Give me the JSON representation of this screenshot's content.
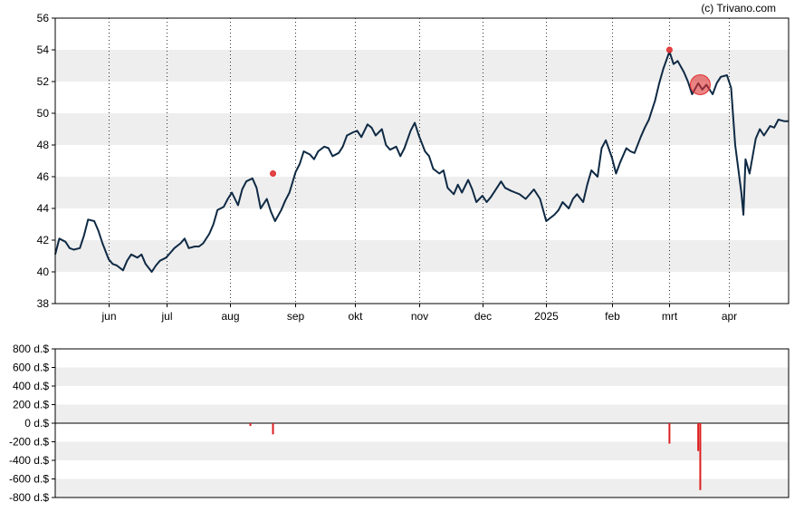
{
  "credit": "(c) Trivano.com",
  "colors": {
    "price_line": "#0f2a44",
    "band": "#eeeeee",
    "marker": "#e03030",
    "volume_bar": "#dd1f1f",
    "grid": "#333333",
    "frame": "#000000"
  },
  "chart_data": [
    {
      "type": "line",
      "title": "",
      "xlabel": "",
      "ylabel": "",
      "ylim": [
        38,
        56
      ],
      "yticks": [
        38,
        40,
        42,
        44,
        46,
        48,
        50,
        52,
        54,
        56
      ],
      "ytick_labels": [
        "38",
        "40",
        "42",
        "44",
        "46",
        "48",
        "50",
        "52",
        "54",
        "56"
      ],
      "xlim": [
        "2024-05-08",
        "2025-04-30"
      ],
      "xticks": [
        {
          "date": "2024-06-03",
          "label": "jun"
        },
        {
          "date": "2024-07-01",
          "label": "jul"
        },
        {
          "date": "2024-08-01",
          "label": "aug"
        },
        {
          "date": "2024-09-02",
          "label": "sep"
        },
        {
          "date": "2024-10-01",
          "label": "okt"
        },
        {
          "date": "2024-11-01",
          "label": "nov"
        },
        {
          "date": "2024-12-02",
          "label": "dec"
        },
        {
          "date": "2025-01-02",
          "label": "2025"
        },
        {
          "date": "2025-02-03",
          "label": "feb"
        },
        {
          "date": "2025-03-03",
          "label": "mrt"
        },
        {
          "date": "2025-04-01",
          "label": "apr"
        }
      ],
      "grid": true,
      "alternating_bands": true,
      "series": [
        {
          "points": [
            [
              "2024-05-08",
              41.1
            ],
            [
              "2024-05-10",
              42.1
            ],
            [
              "2024-05-13",
              41.9
            ],
            [
              "2024-05-15",
              41.5
            ],
            [
              "2024-05-17",
              41.4
            ],
            [
              "2024-05-20",
              41.5
            ],
            [
              "2024-05-22",
              42.3
            ],
            [
              "2024-05-24",
              43.3
            ],
            [
              "2024-05-27",
              43.2
            ],
            [
              "2024-05-29",
              42.6
            ],
            [
              "2024-05-31",
              41.8
            ],
            [
              "2024-06-03",
              40.8
            ],
            [
              "2024-06-05",
              40.5
            ],
            [
              "2024-06-07",
              40.4
            ],
            [
              "2024-06-10",
              40.1
            ],
            [
              "2024-06-12",
              40.7
            ],
            [
              "2024-06-14",
              41.1
            ],
            [
              "2024-06-17",
              40.9
            ],
            [
              "2024-06-19",
              41.1
            ],
            [
              "2024-06-21",
              40.5
            ],
            [
              "2024-06-24",
              40.0
            ],
            [
              "2024-06-26",
              40.4
            ],
            [
              "2024-06-28",
              40.7
            ],
            [
              "2024-07-01",
              40.9
            ],
            [
              "2024-07-03",
              41.2
            ],
            [
              "2024-07-05",
              41.5
            ],
            [
              "2024-07-08",
              41.8
            ],
            [
              "2024-07-10",
              42.1
            ],
            [
              "2024-07-12",
              41.5
            ],
            [
              "2024-07-15",
              41.6
            ],
            [
              "2024-07-17",
              41.6
            ],
            [
              "2024-07-19",
              41.8
            ],
            [
              "2024-07-22",
              42.4
            ],
            [
              "2024-07-24",
              43.0
            ],
            [
              "2024-07-26",
              43.9
            ],
            [
              "2024-07-29",
              44.1
            ],
            [
              "2024-07-31",
              44.6
            ],
            [
              "2024-08-02",
              45.0
            ],
            [
              "2024-08-05",
              44.2
            ],
            [
              "2024-08-07",
              45.2
            ],
            [
              "2024-08-09",
              45.7
            ],
            [
              "2024-08-12",
              45.9
            ],
            [
              "2024-08-14",
              45.3
            ],
            [
              "2024-08-16",
              44.0
            ],
            [
              "2024-08-19",
              44.6
            ],
            [
              "2024-08-21",
              43.8
            ],
            [
              "2024-08-23",
              43.2
            ],
            [
              "2024-08-26",
              43.9
            ],
            [
              "2024-08-28",
              44.5
            ],
            [
              "2024-08-30",
              45.0
            ],
            [
              "2024-09-02",
              46.3
            ],
            [
              "2024-09-04",
              46.8
            ],
            [
              "2024-09-06",
              47.6
            ],
            [
              "2024-09-09",
              47.4
            ],
            [
              "2024-09-11",
              47.1
            ],
            [
              "2024-09-13",
              47.6
            ],
            [
              "2024-09-16",
              47.9
            ],
            [
              "2024-09-18",
              47.8
            ],
            [
              "2024-09-20",
              47.3
            ],
            [
              "2024-09-23",
              47.5
            ],
            [
              "2024-09-25",
              47.9
            ],
            [
              "2024-09-27",
              48.6
            ],
            [
              "2024-09-30",
              48.8
            ],
            [
              "2024-10-02",
              48.9
            ],
            [
              "2024-10-04",
              48.5
            ],
            [
              "2024-10-07",
              49.3
            ],
            [
              "2024-10-09",
              49.1
            ],
            [
              "2024-10-11",
              48.6
            ],
            [
              "2024-10-14",
              49.0
            ],
            [
              "2024-10-16",
              48.0
            ],
            [
              "2024-10-18",
              47.7
            ],
            [
              "2024-10-21",
              47.9
            ],
            [
              "2024-10-23",
              47.3
            ],
            [
              "2024-10-25",
              47.8
            ],
            [
              "2024-10-28",
              48.9
            ],
            [
              "2024-10-30",
              49.4
            ],
            [
              "2024-11-01",
              48.6
            ],
            [
              "2024-11-04",
              47.6
            ],
            [
              "2024-11-06",
              47.3
            ],
            [
              "2024-11-08",
              46.5
            ],
            [
              "2024-11-11",
              46.2
            ],
            [
              "2024-11-13",
              46.4
            ],
            [
              "2024-11-15",
              45.3
            ],
            [
              "2024-11-18",
              44.9
            ],
            [
              "2024-11-20",
              45.5
            ],
            [
              "2024-11-22",
              45.0
            ],
            [
              "2024-11-25",
              45.8
            ],
            [
              "2024-11-27",
              45.2
            ],
            [
              "2024-11-29",
              44.4
            ],
            [
              "2024-12-02",
              44.8
            ],
            [
              "2024-12-04",
              44.4
            ],
            [
              "2024-12-06",
              44.7
            ],
            [
              "2024-12-09",
              45.3
            ],
            [
              "2024-12-11",
              45.7
            ],
            [
              "2024-12-13",
              45.3
            ],
            [
              "2024-12-16",
              45.1
            ],
            [
              "2024-12-18",
              45.0
            ],
            [
              "2024-12-20",
              44.9
            ],
            [
              "2024-12-23",
              44.6
            ],
            [
              "2024-12-27",
              45.2
            ],
            [
              "2024-12-30",
              44.6
            ],
            [
              "2025-01-02",
              43.2
            ],
            [
              "2025-01-06",
              43.6
            ],
            [
              "2025-01-08",
              43.9
            ],
            [
              "2025-01-10",
              44.4
            ],
            [
              "2025-01-13",
              44.0
            ],
            [
              "2025-01-15",
              44.6
            ],
            [
              "2025-01-17",
              44.9
            ],
            [
              "2025-01-20",
              44.4
            ],
            [
              "2025-01-22",
              45.5
            ],
            [
              "2025-01-24",
              46.4
            ],
            [
              "2025-01-27",
              46.0
            ],
            [
              "2025-01-29",
              47.8
            ],
            [
              "2025-01-31",
              48.3
            ],
            [
              "2025-02-03",
              47.2
            ],
            [
              "2025-02-05",
              46.2
            ],
            [
              "2025-02-07",
              46.9
            ],
            [
              "2025-02-10",
              47.8
            ],
            [
              "2025-02-12",
              47.6
            ],
            [
              "2025-02-14",
              47.5
            ],
            [
              "2025-02-17",
              48.5
            ],
            [
              "2025-02-19",
              49.1
            ],
            [
              "2025-02-21",
              49.6
            ],
            [
              "2025-02-24",
              50.8
            ],
            [
              "2025-02-26",
              51.9
            ],
            [
              "2025-02-28",
              52.8
            ],
            [
              "2025-03-03",
              53.9
            ],
            [
              "2025-03-05",
              53.1
            ],
            [
              "2025-03-07",
              53.3
            ],
            [
              "2025-03-10",
              52.6
            ],
            [
              "2025-03-12",
              52.0
            ],
            [
              "2025-03-14",
              51.2
            ],
            [
              "2025-03-17",
              51.9
            ],
            [
              "2025-03-19",
              51.5
            ],
            [
              "2025-03-21",
              51.8
            ],
            [
              "2025-03-24",
              51.2
            ],
            [
              "2025-03-26",
              51.9
            ],
            [
              "2025-03-28",
              52.3
            ],
            [
              "2025-03-31",
              52.4
            ],
            [
              "2025-04-02",
              51.6
            ],
            [
              "2025-04-04",
              48.0
            ],
            [
              "2025-04-07",
              45.0
            ],
            [
              "2025-04-08",
              43.6
            ],
            [
              "2025-04-09",
              47.1
            ],
            [
              "2025-04-11",
              46.2
            ],
            [
              "2025-04-14",
              48.4
            ],
            [
              "2025-04-16",
              49.0
            ],
            [
              "2025-04-18",
              48.6
            ],
            [
              "2025-04-21",
              49.2
            ],
            [
              "2025-04-23",
              49.1
            ],
            [
              "2025-04-25",
              49.6
            ],
            [
              "2025-04-28",
              49.5
            ],
            [
              "2025-04-30",
              49.5
            ]
          ]
        }
      ],
      "markers": [
        {
          "date": "2024-08-22",
          "value": 46.2,
          "size": "small"
        },
        {
          "date": "2025-03-03",
          "value": 54.0,
          "size": "small"
        },
        {
          "date": "2025-03-18",
          "value": 51.8,
          "size": "large"
        }
      ]
    },
    {
      "type": "bar",
      "title": "",
      "xlabel": "",
      "ylabel": "",
      "ylim": [
        -800,
        800
      ],
      "yticks": [
        -800,
        -600,
        -400,
        -200,
        0,
        200,
        400,
        600,
        800
      ],
      "ytick_labels": [
        "-800 d.$",
        "-600 d.$",
        "-400 d.$",
        "-200 d.$",
        "0 d.$",
        "200 d.$",
        "400 d.$",
        "600 d.$",
        "800 d.$"
      ],
      "grid": false,
      "alternating_bands": true,
      "bars": [
        {
          "date": "2024-08-11",
          "value": -30
        },
        {
          "date": "2024-08-22",
          "value": -120
        },
        {
          "date": "2025-03-03",
          "value": -220
        },
        {
          "date": "2025-03-17",
          "value": -300
        },
        {
          "date": "2025-03-18",
          "value": -720
        }
      ]
    }
  ]
}
